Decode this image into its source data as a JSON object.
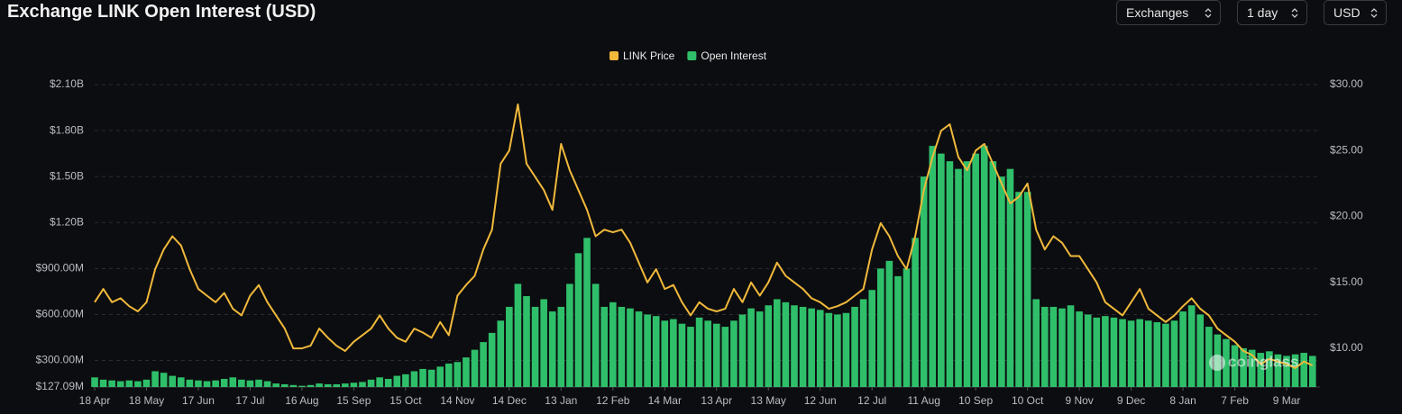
{
  "header": {
    "title": "Exchange LINK Open Interest (USD)",
    "controls": [
      "Exchanges",
      "1 day",
      "USD"
    ]
  },
  "chart_data": {
    "type": "bar-line",
    "watermark": "coinglass",
    "categories": [
      "18 Apr",
      null,
      null,
      null,
      null,
      null,
      "18 May",
      null,
      null,
      null,
      null,
      null,
      "17 Jun",
      null,
      null,
      null,
      null,
      null,
      "17 Jul",
      null,
      null,
      null,
      null,
      null,
      "16 Aug",
      null,
      null,
      null,
      null,
      null,
      "15 Sep",
      null,
      null,
      null,
      null,
      null,
      "15 Oct",
      null,
      null,
      null,
      null,
      null,
      "14 Nov",
      null,
      null,
      null,
      null,
      null,
      "14 Dec",
      null,
      null,
      null,
      null,
      null,
      "13 Jan",
      null,
      null,
      null,
      null,
      null,
      "12 Feb",
      null,
      null,
      null,
      null,
      null,
      "14 Mar",
      null,
      null,
      null,
      null,
      null,
      "13 Apr",
      null,
      null,
      null,
      null,
      null,
      "13 May",
      null,
      null,
      null,
      null,
      null,
      "12 Jun",
      null,
      null,
      null,
      null,
      null,
      "12 Jul",
      null,
      null,
      null,
      null,
      null,
      "11 Aug",
      null,
      null,
      null,
      null,
      null,
      "10 Sep",
      null,
      null,
      null,
      null,
      null,
      "10 Oct",
      null,
      null,
      null,
      null,
      null,
      "9 Nov",
      null,
      null,
      null,
      null,
      null,
      "9 Dec",
      null,
      null,
      null,
      null,
      null,
      "8 Jan",
      null,
      null,
      null,
      null,
      null,
      "7 Feb",
      null,
      null,
      null,
      null,
      null,
      "9 Mar",
      null,
      null,
      null
    ],
    "series": [
      {
        "name": "LINK Price",
        "color": "#f0b93b",
        "axis": "y2",
        "kind": "line",
        "values": [
          13.5,
          14.5,
          13.5,
          13.8,
          13.2,
          12.8,
          13.5,
          16.0,
          17.5,
          18.5,
          17.8,
          16.0,
          14.5,
          14.0,
          13.5,
          14.2,
          13.0,
          12.5,
          14.0,
          14.8,
          13.5,
          12.5,
          11.5,
          10.0,
          10.0,
          10.2,
          11.5,
          10.8,
          10.2,
          9.8,
          10.5,
          11.0,
          11.5,
          12.5,
          11.5,
          10.8,
          10.5,
          11.5,
          11.2,
          10.8,
          12.0,
          11.0,
          14.0,
          14.8,
          15.5,
          17.5,
          19.0,
          24.0,
          25.0,
          28.5,
          24.0,
          23.0,
          22.0,
          20.5,
          25.5,
          23.5,
          22.0,
          20.5,
          18.5,
          19.0,
          18.8,
          19.0,
          18.0,
          16.5,
          15.0,
          16.0,
          14.5,
          14.8,
          13.5,
          12.5,
          13.5,
          13.0,
          12.8,
          13.0,
          14.5,
          13.5,
          15.0,
          14.0,
          15.0,
          16.5,
          15.5,
          15.0,
          14.5,
          13.8,
          13.5,
          13.0,
          13.2,
          13.5,
          14.0,
          14.5,
          17.5,
          19.5,
          18.5,
          17.0,
          16.0,
          18.5,
          22.0,
          24.5,
          26.5,
          27.0,
          24.5,
          23.5,
          25.0,
          25.5,
          24.0,
          22.5,
          21.0,
          21.5,
          22.5,
          19.0,
          17.5,
          18.5,
          18.0,
          17.0,
          17.0,
          16.0,
          15.0,
          13.5,
          13.0,
          12.5,
          13.5,
          14.5,
          13.0,
          12.5,
          12.0,
          12.5,
          13.2,
          13.8,
          13.0,
          12.5,
          11.5,
          11.0,
          10.5,
          9.8,
          9.5,
          8.8,
          9.2,
          9.0,
          8.8,
          8.5,
          9.0,
          8.7
        ]
      },
      {
        "name": "Open Interest",
        "color": "#2fbf6a",
        "axis": "y",
        "kind": "bar",
        "values": [
          190000000,
          175000000,
          170000000,
          165000000,
          170000000,
          165000000,
          175000000,
          230000000,
          220000000,
          200000000,
          190000000,
          175000000,
          170000000,
          165000000,
          170000000,
          180000000,
          190000000,
          175000000,
          170000000,
          175000000,
          165000000,
          150000000,
          145000000,
          140000000,
          135000000,
          140000000,
          150000000,
          145000000,
          145000000,
          150000000,
          155000000,
          160000000,
          175000000,
          190000000,
          180000000,
          200000000,
          210000000,
          230000000,
          245000000,
          240000000,
          260000000,
          280000000,
          290000000,
          320000000,
          370000000,
          420000000,
          480000000,
          560000000,
          650000000,
          800000000,
          720000000,
          650000000,
          700000000,
          620000000,
          650000000,
          800000000,
          1000000000,
          1100000000,
          800000000,
          650000000,
          680000000,
          650000000,
          640000000,
          620000000,
          600000000,
          590000000,
          560000000,
          570000000,
          540000000,
          520000000,
          580000000,
          560000000,
          540000000,
          520000000,
          560000000,
          600000000,
          640000000,
          620000000,
          660000000,
          700000000,
          680000000,
          660000000,
          650000000,
          640000000,
          630000000,
          610000000,
          600000000,
          610000000,
          650000000,
          700000000,
          760000000,
          900000000,
          950000000,
          850000000,
          900000000,
          1100000000,
          1500000000,
          1700000000,
          1650000000,
          1600000000,
          1550000000,
          1600000000,
          1650000000,
          1700000000,
          1600000000,
          1500000000,
          1550000000,
          1400000000,
          1400000000,
          700000000,
          650000000,
          650000000,
          640000000,
          660000000,
          620000000,
          600000000,
          580000000,
          590000000,
          580000000,
          570000000,
          560000000,
          570000000,
          560000000,
          550000000,
          540000000,
          560000000,
          620000000,
          660000000,
          600000000,
          520000000,
          470000000,
          440000000,
          400000000,
          380000000,
          370000000,
          350000000,
          360000000,
          340000000,
          330000000,
          340000000,
          350000000,
          330000000
        ]
      }
    ],
    "ylim": [
      127090000,
      2100000000
    ],
    "yticks": [
      {
        "value": 127090000,
        "label": "$127.09M"
      },
      {
        "value": 300000000,
        "label": "$300.00M"
      },
      {
        "value": 600000000,
        "label": "$600.00M"
      },
      {
        "value": 900000000,
        "label": "$900.00M"
      },
      {
        "value": 1200000000,
        "label": "$1.20B"
      },
      {
        "value": 1500000000,
        "label": "$1.50B"
      },
      {
        "value": 1800000000,
        "label": "$1.80B"
      },
      {
        "value": 2100000000,
        "label": "$2.10B"
      }
    ],
    "y2lim": [
      7.07,
      30
    ],
    "y2ticks": [
      {
        "value": 10,
        "label": "$10.00"
      },
      {
        "value": 15,
        "label": "$15.00"
      },
      {
        "value": 20,
        "label": "$20.00"
      },
      {
        "value": 25,
        "label": "$25.00"
      },
      {
        "value": 30,
        "label": "$30.00"
      }
    ],
    "grid": true
  }
}
